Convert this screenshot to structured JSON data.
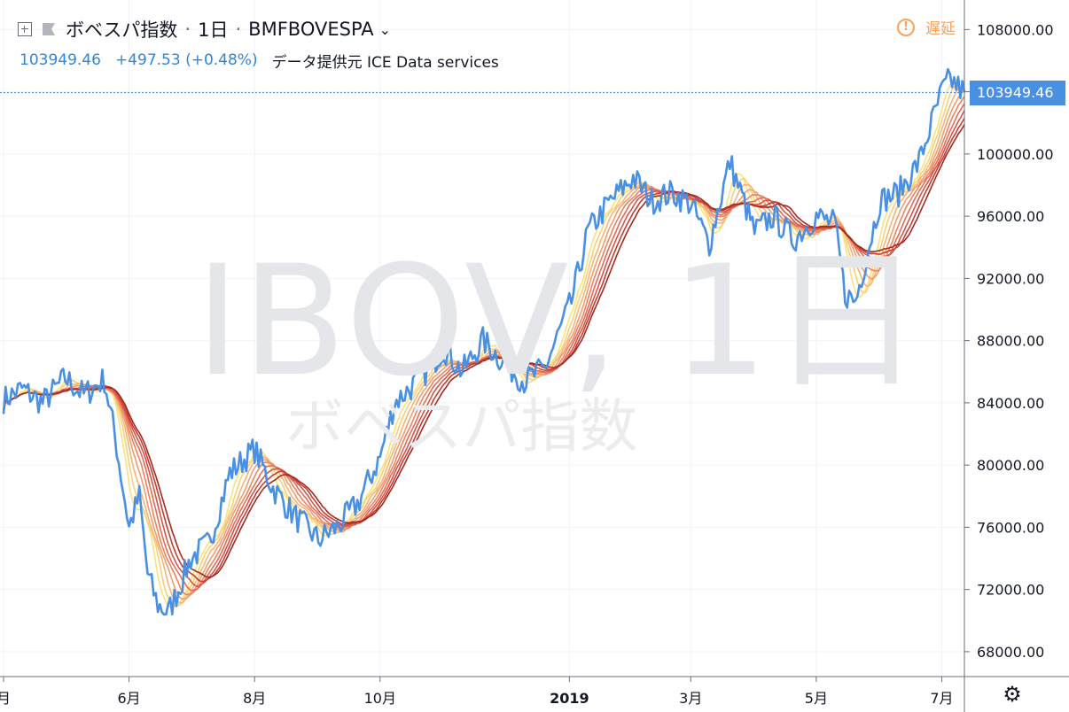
{
  "header": {
    "symbol_name": "ボベスパ指数",
    "interval": "1日",
    "exchange_symbol": "BMFBOVESPA",
    "delay_label": "遅延",
    "last_price": "103949.46",
    "change": "+497.53 (+0.48%)",
    "data_source": "データ提供元 ICE Data services"
  },
  "watermark": {
    "main": "IBOV, 1日",
    "sub": "ボベスパ指数"
  },
  "price_tag": "103949.46",
  "icons": {
    "add": "plus-square-icon",
    "flag": "flag-icon",
    "chevron": "chevron-down-icon",
    "delay": "alert-circle-icon",
    "settings": "gear-icon"
  },
  "colors": {
    "price": "#4a90e2",
    "accent": "#2e86de",
    "delay": "#f7a35c",
    "ribbon": [
      "#fbe27a",
      "#f9d07a",
      "#f6b577",
      "#f29d6e",
      "#ec8462",
      "#e26c55",
      "#d65447",
      "#c43e36",
      "#a52a1e"
    ]
  },
  "chart_data": {
    "type": "line",
    "title": "IBOV, 1日",
    "x_axis_labels": [
      "月",
      "6月",
      "8月",
      "10月",
      "2019",
      "3月",
      "5月",
      "7月"
    ],
    "y_axis_labels": [
      "108000.00",
      "104000.00",
      "100000.00",
      "96000.00",
      "92000.00",
      "88000.00",
      "84000.00",
      "80000.00",
      "76000.00",
      "72000.00",
      "68000.00"
    ],
    "ylim": [
      66400,
      109900
    ],
    "grid": true,
    "x_range": [
      "2018-04-01",
      "2019-07-12"
    ],
    "series": [
      {
        "name": "IBOV",
        "x": [
          "2018-04-01",
          "2018-04-10",
          "2018-04-20",
          "2018-05-01",
          "2018-05-10",
          "2018-05-20",
          "2018-05-25",
          "2018-06-01",
          "2018-06-06",
          "2018-06-10",
          "2018-06-15",
          "2018-06-20",
          "2018-06-25",
          "2018-07-01",
          "2018-07-10",
          "2018-07-20",
          "2018-08-01",
          "2018-08-10",
          "2018-08-20",
          "2018-09-01",
          "2018-09-10",
          "2018-09-20",
          "2018-10-01",
          "2018-10-08",
          "2018-10-20",
          "2018-11-01",
          "2018-11-10",
          "2018-11-20",
          "2018-12-01",
          "2018-12-10",
          "2018-12-20",
          "2019-01-02",
          "2019-01-10",
          "2019-01-20",
          "2019-02-01",
          "2019-02-10",
          "2019-02-20",
          "2019-03-01",
          "2019-03-10",
          "2019-03-20",
          "2019-04-01",
          "2019-04-10",
          "2019-04-20",
          "2019-05-01",
          "2019-05-10",
          "2019-05-15",
          "2019-05-20",
          "2019-06-01",
          "2019-06-10",
          "2019-06-20",
          "2019-07-01",
          "2019-07-05",
          "2019-07-12"
        ],
        "y": [
          84200,
          84900,
          84000,
          85600,
          84500,
          85500,
          82000,
          76000,
          78000,
          73000,
          71000,
          70500,
          72000,
          74000,
          75000,
          79500,
          81000,
          78500,
          76800,
          75200,
          76000,
          77500,
          80500,
          84000,
          85500,
          87500,
          86000,
          88000,
          86500,
          85400,
          86200,
          90500,
          95000,
          96800,
          98500,
          97000,
          97500,
          96800,
          94200,
          99500,
          95000,
          96000,
          94500,
          96000,
          95500,
          91000,
          90500,
          97000,
          97500,
          99500,
          104000,
          104800,
          103949
        ]
      }
    ],
    "ribbon_note": "9 moving-average bands (light yellow to dark red)"
  }
}
